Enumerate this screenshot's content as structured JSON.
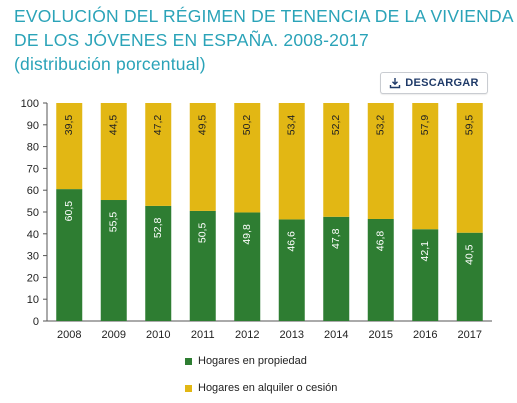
{
  "header": {
    "title_line1": "EVOLUCIÓN DEL RÉGIMEN DE TENENCIA DE LA VIVIENDA",
    "title_line2": "DE LOS JÓVENES EN ESPAÑA. 2008-2017",
    "subtitle": "(distribución porcentual)"
  },
  "toolbar": {
    "download_label": "DESCARGAR",
    "download_icon": "download-icon"
  },
  "colors": {
    "propiedad": "#2e7d32",
    "alquiler": "#e2b714",
    "title": "#2aa3b8"
  },
  "chart_data": {
    "type": "bar",
    "stacked": true,
    "categories": [
      "2008",
      "2009",
      "2010",
      "2011",
      "2012",
      "2013",
      "2014",
      "2015",
      "2016",
      "2017"
    ],
    "series": [
      {
        "name": "Hogares en propiedad",
        "values": [
          60.5,
          55.5,
          52.8,
          50.5,
          49.8,
          46.6,
          47.8,
          46.8,
          42.1,
          40.5
        ],
        "labels": [
          "60,5",
          "55,5",
          "52,8",
          "50,5",
          "49,8",
          "46,6",
          "47,8",
          "46,8",
          "42,1",
          "40,5"
        ]
      },
      {
        "name": "Hogares en alquiler o cesión",
        "values": [
          39.5,
          44.5,
          47.2,
          49.5,
          50.2,
          53.4,
          52.2,
          53.2,
          57.9,
          59.5
        ],
        "labels": [
          "39,5",
          "44,5",
          "47,2",
          "49,5",
          "50,2",
          "53,4",
          "52,2",
          "53,2",
          "57,9",
          "59,5"
        ]
      }
    ],
    "ylim": [
      0,
      100
    ],
    "yticks": [
      "0",
      "10",
      "20",
      "30",
      "40",
      "50",
      "60",
      "70",
      "80",
      "90",
      "100"
    ],
    "grid": false,
    "legend_position": "bottom"
  }
}
